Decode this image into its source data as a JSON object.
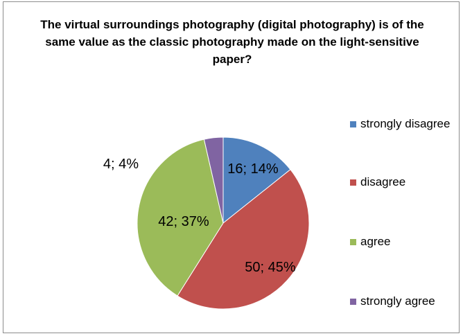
{
  "chart_data": {
    "type": "pie",
    "title": "The virtual surroundings photography  (digital photography) is of the same value as the classic photography made on the light-sensitive paper?",
    "categories": [
      "strongly disagree",
      "disagree",
      "agree",
      "strongly agree"
    ],
    "values": [
      16,
      50,
      42,
      4
    ],
    "percentages": [
      "14%",
      "45%",
      "37%",
      "4%"
    ],
    "data_labels": [
      "16; 14%",
      "50; 45%",
      "42; 37%",
      "4; 4%"
    ],
    "colors": [
      "#4F81BD",
      "#C0504D",
      "#9BBB59",
      "#8064A2"
    ],
    "legend_position": "right"
  }
}
